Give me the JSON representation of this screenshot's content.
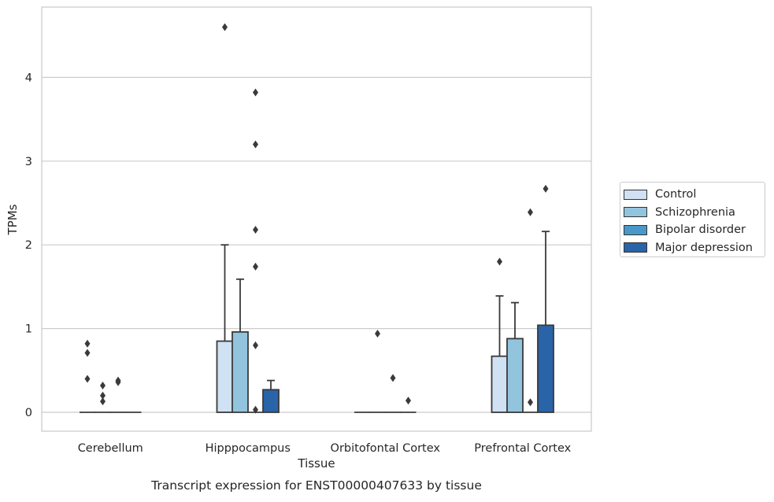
{
  "chart_data": {
    "type": "bar",
    "title": "Transcript expression for ENST00000407633 by tissue",
    "xlabel": "Tissue",
    "ylabel": "TPMs",
    "categories": [
      "Cerebellum",
      "Hipppocampus",
      "Orbitofontal Cortex",
      "Prefrontal Cortex"
    ],
    "ylim": [
      -0.22,
      4.85
    ],
    "yticks": [
      "0",
      "1",
      "2",
      "3",
      "4"
    ],
    "ytick_values": [
      0,
      1,
      2,
      3,
      4
    ],
    "grid": "horizontal",
    "legend_position": "right",
    "series": [
      {
        "name": "Control",
        "color": "#cfe1f2",
        "values": [
          0,
          0.85,
          0,
          0.67
        ],
        "whisker_top": [
          0,
          2.0,
          0,
          1.39
        ],
        "outliers": [
          [
            0.71,
            0.82,
            0.4
          ],
          [
            4.6
          ],
          [],
          [
            1.8
          ]
        ]
      },
      {
        "name": "Schizophrenia",
        "color": "#93c4de",
        "values": [
          0,
          0.96,
          0,
          0.88
        ],
        "whisker_top": [
          0,
          1.59,
          0,
          1.31
        ],
        "outliers": [
          [
            0.32,
            0.2,
            0.13
          ],
          [],
          [
            0.94
          ],
          []
        ]
      },
      {
        "name": "Bipolar disorder",
        "color": "#4a98c9",
        "values": [
          0,
          0,
          0,
          0
        ],
        "whisker_top": [
          0,
          0,
          0,
          0
        ],
        "outliers": [
          [
            0.36,
            0.38
          ],
          [
            3.82,
            3.2,
            2.18,
            1.74,
            0.8,
            0.03
          ],
          [
            0.41
          ],
          [
            2.39,
            0.12
          ]
        ]
      },
      {
        "name": "Major depression",
        "color": "#2a64a8",
        "values": [
          0,
          0.27,
          0,
          1.04
        ],
        "whisker_top": [
          0,
          0.38,
          0,
          2.16
        ],
        "outliers": [
          [],
          [],
          [
            0.14
          ],
          [
            2.67
          ]
        ]
      }
    ]
  }
}
